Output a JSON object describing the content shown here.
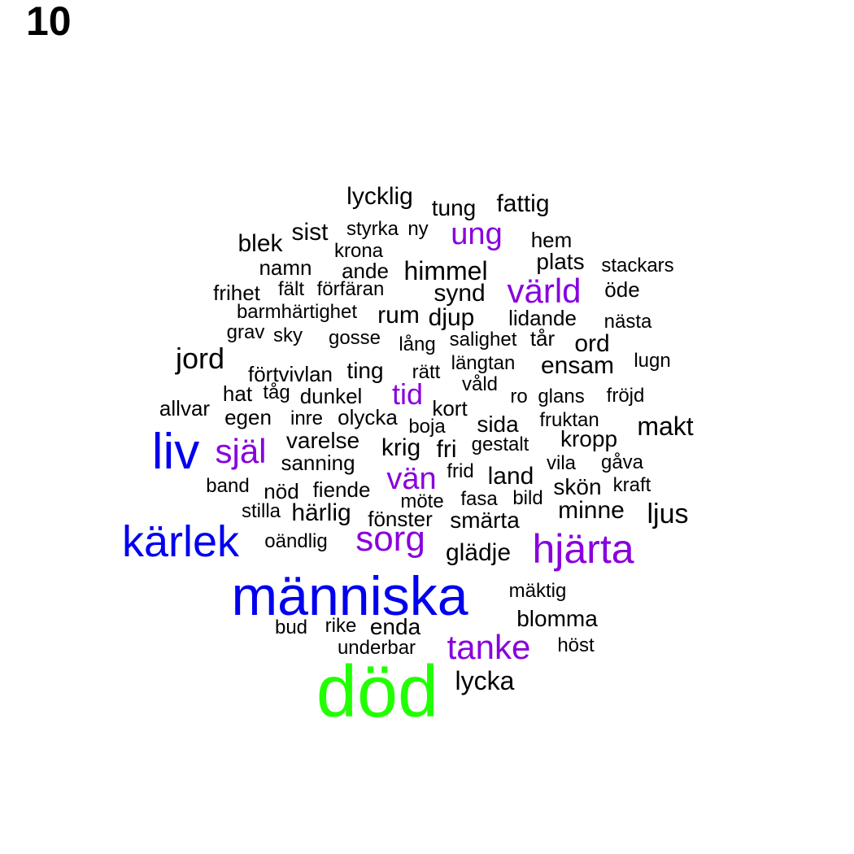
{
  "panel_label": "10",
  "colors": {
    "tier1": "#22ff00",
    "tier2": "#0000ee",
    "tier3": "#8800dd",
    "tier4": "#000000"
  },
  "words": [
    {
      "text": "död",
      "tier": 1
    },
    {
      "text": "människa",
      "tier": 2
    },
    {
      "text": "kärlek",
      "tier": 2
    },
    {
      "text": "liv",
      "tier": 2
    },
    {
      "text": "hjärta",
      "tier": 3
    },
    {
      "text": "sorg",
      "tier": 3
    },
    {
      "text": "själ",
      "tier": 3
    },
    {
      "text": "tanke",
      "tier": 3
    },
    {
      "text": "värld",
      "tier": 3
    },
    {
      "text": "ung",
      "tier": 3
    },
    {
      "text": "vän",
      "tier": 3
    },
    {
      "text": "tid",
      "tier": 3
    },
    {
      "text": "lycklig",
      "tier": 4
    },
    {
      "text": "tung",
      "tier": 4
    },
    {
      "text": "fattig",
      "tier": 4
    },
    {
      "text": "sist",
      "tier": 4
    },
    {
      "text": "styrka",
      "tier": 4
    },
    {
      "text": "ny",
      "tier": 4
    },
    {
      "text": "blek",
      "tier": 4
    },
    {
      "text": "krona",
      "tier": 4
    },
    {
      "text": "hem",
      "tier": 4
    },
    {
      "text": "namn",
      "tier": 4
    },
    {
      "text": "ande",
      "tier": 4
    },
    {
      "text": "himmel",
      "tier": 4
    },
    {
      "text": "plats",
      "tier": 4
    },
    {
      "text": "stackars",
      "tier": 4
    },
    {
      "text": "frihet",
      "tier": 4
    },
    {
      "text": "fält",
      "tier": 4
    },
    {
      "text": "förfäran",
      "tier": 4
    },
    {
      "text": "synd",
      "tier": 4
    },
    {
      "text": "öde",
      "tier": 4
    },
    {
      "text": "barmhärtighet",
      "tier": 4
    },
    {
      "text": "rum",
      "tier": 4
    },
    {
      "text": "djup",
      "tier": 4
    },
    {
      "text": "lidande",
      "tier": 4
    },
    {
      "text": "nästa",
      "tier": 4
    },
    {
      "text": "grav",
      "tier": 4
    },
    {
      "text": "sky",
      "tier": 4
    },
    {
      "text": "gosse",
      "tier": 4
    },
    {
      "text": "lång",
      "tier": 4
    },
    {
      "text": "salighet",
      "tier": 4
    },
    {
      "text": "tår",
      "tier": 4
    },
    {
      "text": "ord",
      "tier": 4
    },
    {
      "text": "jord",
      "tier": 4
    },
    {
      "text": "längtan",
      "tier": 4
    },
    {
      "text": "ensam",
      "tier": 4
    },
    {
      "text": "lugn",
      "tier": 4
    },
    {
      "text": "förtvivlan",
      "tier": 4
    },
    {
      "text": "ting",
      "tier": 4
    },
    {
      "text": "rätt",
      "tier": 4
    },
    {
      "text": "våld",
      "tier": 4
    },
    {
      "text": "hat",
      "tier": 4
    },
    {
      "text": "tåg",
      "tier": 4
    },
    {
      "text": "dunkel",
      "tier": 4
    },
    {
      "text": "ro",
      "tier": 4
    },
    {
      "text": "glans",
      "tier": 4
    },
    {
      "text": "fröjd",
      "tier": 4
    },
    {
      "text": "allvar",
      "tier": 4
    },
    {
      "text": "kort",
      "tier": 4
    },
    {
      "text": "egen",
      "tier": 4
    },
    {
      "text": "inre",
      "tier": 4
    },
    {
      "text": "olycka",
      "tier": 4
    },
    {
      "text": "boja",
      "tier": 4
    },
    {
      "text": "sida",
      "tier": 4
    },
    {
      "text": "fruktan",
      "tier": 4
    },
    {
      "text": "makt",
      "tier": 4
    },
    {
      "text": "varelse",
      "tier": 4
    },
    {
      "text": "krig",
      "tier": 4
    },
    {
      "text": "fri",
      "tier": 4
    },
    {
      "text": "gestalt",
      "tier": 4
    },
    {
      "text": "kropp",
      "tier": 4
    },
    {
      "text": "sanning",
      "tier": 4
    },
    {
      "text": "frid",
      "tier": 4
    },
    {
      "text": "land",
      "tier": 4
    },
    {
      "text": "vila",
      "tier": 4
    },
    {
      "text": "gåva",
      "tier": 4
    },
    {
      "text": "band",
      "tier": 4
    },
    {
      "text": "nöd",
      "tier": 4
    },
    {
      "text": "fiende",
      "tier": 4
    },
    {
      "text": "möte",
      "tier": 4
    },
    {
      "text": "fasa",
      "tier": 4
    },
    {
      "text": "bild",
      "tier": 4
    },
    {
      "text": "skön",
      "tier": 4
    },
    {
      "text": "kraft",
      "tier": 4
    },
    {
      "text": "stilla",
      "tier": 4
    },
    {
      "text": "härlig",
      "tier": 4
    },
    {
      "text": "fönster",
      "tier": 4
    },
    {
      "text": "smärta",
      "tier": 4
    },
    {
      "text": "minne",
      "tier": 4
    },
    {
      "text": "ljus",
      "tier": 4
    },
    {
      "text": "oändlig",
      "tier": 4
    },
    {
      "text": "glädje",
      "tier": 4
    },
    {
      "text": "mäktig",
      "tier": 4
    },
    {
      "text": "blomma",
      "tier": 4
    },
    {
      "text": "bud",
      "tier": 4
    },
    {
      "text": "rike",
      "tier": 4
    },
    {
      "text": "enda",
      "tier": 4
    },
    {
      "text": "underbar",
      "tier": 4
    },
    {
      "text": "höst",
      "tier": 4
    },
    {
      "text": "lycka",
      "tier": 4
    }
  ]
}
